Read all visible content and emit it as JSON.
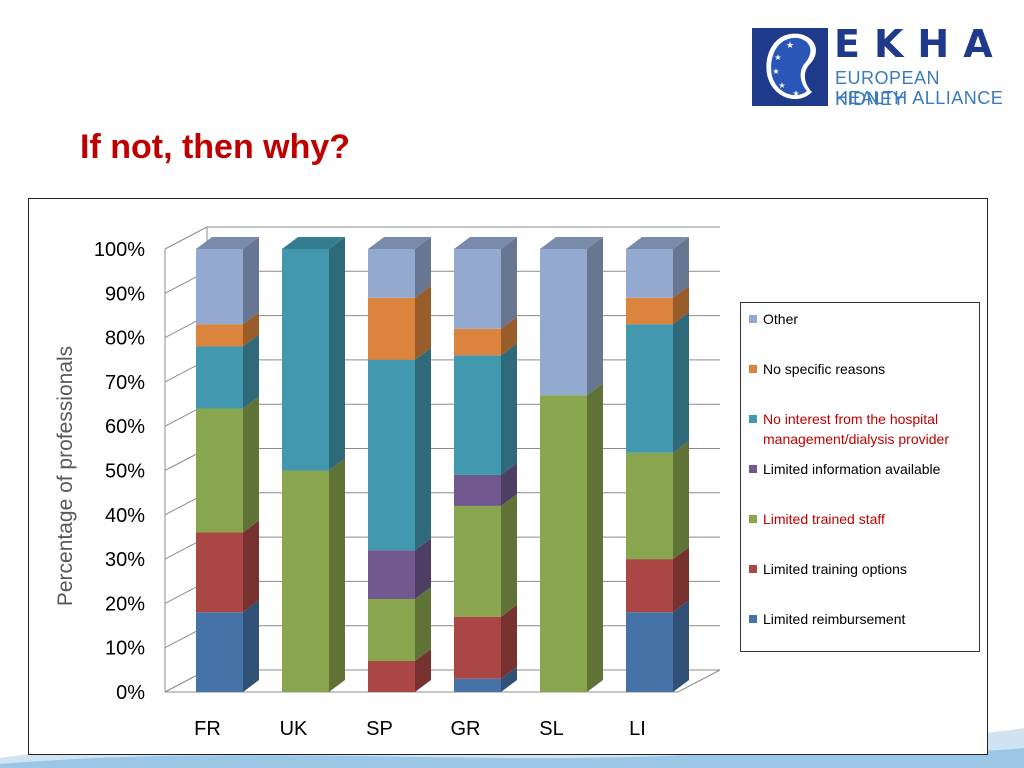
{
  "slide": {
    "title": "If not, then why?"
  },
  "logo": {
    "abbr": "EKHA",
    "line1": "EUROPEAN KIDNEY",
    "line2": "HEALTH ALLIANCE"
  },
  "colors": {
    "title": "#c00000",
    "logo_blue": "#1f3a8a",
    "logo_light_blue": "#3a7bbf"
  },
  "chart_data": {
    "type": "bar",
    "stacked": true,
    "three_d": true,
    "ylabel": "Percentage of professionals",
    "xlabel": "",
    "ylim": [
      0,
      100
    ],
    "yticks": [
      "0%",
      "10%",
      "20%",
      "30%",
      "40%",
      "50%",
      "60%",
      "70%",
      "80%",
      "90%",
      "100%"
    ],
    "grid": true,
    "legend_position": "right",
    "categories": [
      "FR",
      "UK",
      "SP",
      "GR",
      "SL",
      "LI"
    ],
    "series": [
      {
        "name": "Limited reimbursement",
        "color": "#4572a7",
        "values": [
          18,
          0,
          0,
          3,
          0,
          18
        ]
      },
      {
        "name": "Limited training options",
        "color": "#aa4643",
        "values": [
          18,
          0,
          7,
          14,
          0,
          12
        ]
      },
      {
        "name": "Limited trained staff",
        "color": "#89a54e",
        "values": [
          28,
          50,
          14,
          25,
          67,
          24
        ]
      },
      {
        "name": "Limited information available",
        "color": "#71588f",
        "values": [
          0,
          0,
          11,
          7,
          0,
          0
        ]
      },
      {
        "name": "No interest from the hospital management/dialysis provider",
        "color": "#4198af",
        "values": [
          14,
          50,
          43,
          27,
          0,
          29
        ]
      },
      {
        "name": "No specific reasons",
        "color": "#db843d",
        "values": [
          5,
          0,
          14,
          6,
          0,
          6
        ]
      },
      {
        "name": "Other",
        "color": "#93a9cf",
        "values": [
          17,
          0,
          11,
          18,
          33,
          11
        ]
      }
    ],
    "legend_label_lines": [
      [
        "Other"
      ],
      [
        "No specific reasons"
      ],
      [
        "No interest from the hospital",
        "management/dialysis provider"
      ],
      [
        "Limited information available"
      ],
      [
        "Limited trained staff"
      ],
      [
        "Limited training options"
      ],
      [
        "Limited reimbursement"
      ]
    ],
    "legend_red_labels": [
      "No interest from the hospital management/dialysis provider",
      "Limited trained staff"
    ]
  }
}
